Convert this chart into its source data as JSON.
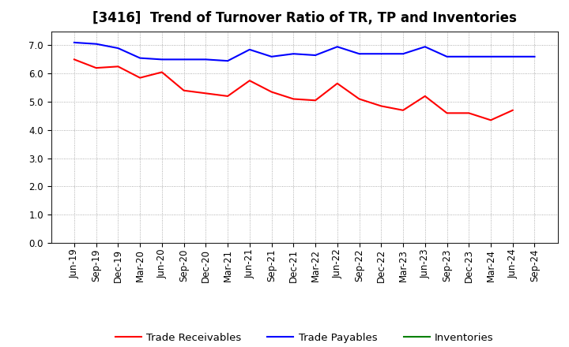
{
  "title": "[3416]  Trend of Turnover Ratio of TR, TP and Inventories",
  "x_labels": [
    "Jun-19",
    "Sep-19",
    "Dec-19",
    "Mar-20",
    "Jun-20",
    "Sep-20",
    "Dec-20",
    "Mar-21",
    "Jun-21",
    "Sep-21",
    "Dec-21",
    "Mar-22",
    "Jun-22",
    "Sep-22",
    "Dec-22",
    "Mar-23",
    "Jun-23",
    "Sep-23",
    "Dec-23",
    "Mar-24",
    "Jun-24",
    "Sep-24"
  ],
  "trade_receivables": [
    6.5,
    6.2,
    6.25,
    5.85,
    6.05,
    5.4,
    5.3,
    5.2,
    5.75,
    5.35,
    5.1,
    5.05,
    5.65,
    5.1,
    4.85,
    4.7,
    5.2,
    4.6,
    4.6,
    4.35,
    4.7,
    null
  ],
  "trade_payables": [
    7.1,
    7.05,
    6.9,
    6.55,
    6.5,
    6.5,
    6.5,
    6.45,
    6.85,
    6.6,
    6.7,
    6.65,
    6.95,
    6.7,
    6.7,
    6.7,
    6.95,
    6.6,
    6.6,
    6.6,
    6.6,
    6.6
  ],
  "inventories": [
    null,
    null,
    null,
    null,
    null,
    null,
    null,
    null,
    null,
    null,
    null,
    null,
    null,
    null,
    null,
    null,
    null,
    null,
    null,
    null,
    null,
    null
  ],
  "ylim": [
    0,
    7.5
  ],
  "yticks": [
    0.0,
    1.0,
    2.0,
    3.0,
    4.0,
    5.0,
    6.0,
    7.0
  ],
  "line_color_tr": "#ff0000",
  "line_color_tp": "#0000ff",
  "line_color_inv": "#008000",
  "legend_labels": [
    "Trade Receivables",
    "Trade Payables",
    "Inventories"
  ],
  "grid_color": "#999999",
  "background_color": "#ffffff",
  "title_fontsize": 12,
  "axis_fontsize": 8.5,
  "legend_fontsize": 9.5
}
